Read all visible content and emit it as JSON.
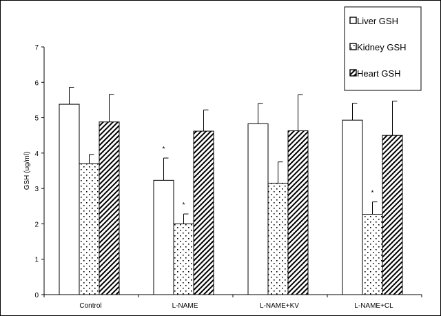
{
  "chart_data": {
    "type": "bar",
    "categories": [
      "Control",
      "L-NAME",
      "L-NAME+KV",
      "L-NAME+CL"
    ],
    "ylabel": "GSH (ug/ml)",
    "xlabel": "",
    "ylim": [
      0,
      7
    ],
    "yticks": [
      "0",
      "1",
      "2",
      "3",
      "4",
      "5",
      "6",
      "7"
    ],
    "grid": false,
    "legend_position": "top-right",
    "series": [
      {
        "name": "Liver GSH",
        "pattern": "blank",
        "values": [
          5.38,
          3.23,
          4.83,
          4.93
        ],
        "errors": [
          0.48,
          0.63,
          0.57,
          0.48
        ],
        "marks": [
          "",
          "*",
          "",
          ""
        ]
      },
      {
        "name": "Kidney GSH",
        "pattern": "dots",
        "values": [
          3.7,
          2.0,
          3.15,
          2.27
        ],
        "errors": [
          0.26,
          0.28,
          0.6,
          0.35
        ],
        "marks": [
          "",
          "*",
          "",
          "*"
        ]
      },
      {
        "name": "Heart GSH",
        "pattern": "diagonal",
        "values": [
          4.88,
          4.62,
          4.63,
          4.5
        ],
        "errors": [
          0.78,
          0.6,
          1.02,
          0.97
        ],
        "marks": [
          "",
          "",
          "",
          ""
        ]
      }
    ]
  }
}
